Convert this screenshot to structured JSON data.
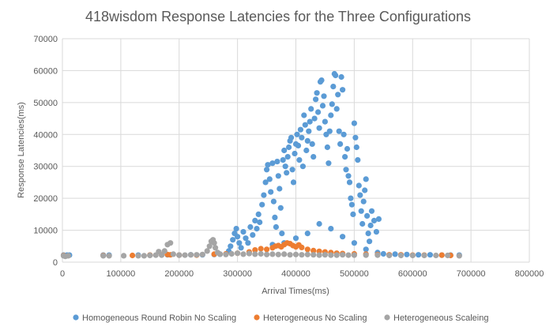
{
  "chart_data": {
    "type": "scatter",
    "title": "418wisdom Response Latencies for the Three Configurations",
    "xlabel": "Arrival Times(ms)",
    "ylabel": "Response Latencies(ms)",
    "xlim": [
      0,
      800000
    ],
    "ylim": [
      0,
      70000
    ],
    "xticks": [
      0,
      100000,
      200000,
      300000,
      400000,
      500000,
      600000,
      700000,
      800000
    ],
    "yticks": [
      0,
      10000,
      20000,
      30000,
      40000,
      50000,
      60000,
      70000
    ],
    "grid": true,
    "legend_position": "bottom",
    "series": [
      {
        "name": "Homogeneous Round Robin No Scaling",
        "color": "#5b9bd5",
        "points": [
          [
            2000,
            2200
          ],
          [
            8000,
            2200
          ],
          [
            12000,
            2200
          ],
          [
            70000,
            2200
          ],
          [
            80000,
            2200
          ],
          [
            130000,
            2200
          ],
          [
            150000,
            2200
          ],
          [
            180000,
            2300
          ],
          [
            200000,
            2200
          ],
          [
            220000,
            2300
          ],
          [
            240000,
            2300
          ],
          [
            260000,
            2400
          ],
          [
            270000,
            2500
          ],
          [
            285000,
            3500
          ],
          [
            288000,
            5000
          ],
          [
            292000,
            7000
          ],
          [
            295000,
            9000
          ],
          [
            298000,
            10500
          ],
          [
            300000,
            8000
          ],
          [
            303000,
            6000
          ],
          [
            306000,
            4500
          ],
          [
            310000,
            9500
          ],
          [
            314000,
            7500
          ],
          [
            318000,
            6000
          ],
          [
            322000,
            11000
          ],
          [
            326000,
            8500
          ],
          [
            330000,
            13000
          ],
          [
            333000,
            10500
          ],
          [
            336000,
            15000
          ],
          [
            338000,
            12500
          ],
          [
            342000,
            18000
          ],
          [
            345000,
            21000
          ],
          [
            348000,
            25000
          ],
          [
            350000,
            29000
          ],
          [
            352000,
            30500
          ],
          [
            355000,
            26000
          ],
          [
            357000,
            22000
          ],
          [
            360000,
            31000
          ],
          [
            362000,
            19000
          ],
          [
            364000,
            14000
          ],
          [
            366000,
            11000
          ],
          [
            368000,
            31500
          ],
          [
            370000,
            27000
          ],
          [
            372000,
            23000
          ],
          [
            374000,
            17000
          ],
          [
            376000,
            9000
          ],
          [
            378000,
            32000
          ],
          [
            380000,
            35000
          ],
          [
            382000,
            30000
          ],
          [
            384000,
            28000
          ],
          [
            386000,
            33000
          ],
          [
            388000,
            36000
          ],
          [
            390000,
            38000
          ],
          [
            392000,
            39000
          ],
          [
            394000,
            29000
          ],
          [
            396000,
            25000
          ],
          [
            398000,
            34000
          ],
          [
            400000,
            37000
          ],
          [
            402000,
            40000
          ],
          [
            404000,
            36500
          ],
          [
            406000,
            32000
          ],
          [
            408000,
            41500
          ],
          [
            410000,
            39000
          ],
          [
            412000,
            30000
          ],
          [
            414000,
            46000
          ],
          [
            416000,
            43000
          ],
          [
            418000,
            35000
          ],
          [
            420000,
            38000
          ],
          [
            422000,
            41000
          ],
          [
            424000,
            44000
          ],
          [
            426000,
            48000
          ],
          [
            428000,
            37000
          ],
          [
            430000,
            33000
          ],
          [
            432000,
            45000
          ],
          [
            434000,
            51000
          ],
          [
            436000,
            53000
          ],
          [
            438000,
            47000
          ],
          [
            440000,
            42000
          ],
          [
            442000,
            56500
          ],
          [
            444000,
            57000
          ],
          [
            446000,
            49000
          ],
          [
            448000,
            52000
          ],
          [
            450000,
            44000
          ],
          [
            452000,
            40000
          ],
          [
            454000,
            36000
          ],
          [
            456000,
            31000
          ],
          [
            458000,
            41000
          ],
          [
            460000,
            46000
          ],
          [
            462000,
            49500
          ],
          [
            464000,
            55000
          ],
          [
            466000,
            59000
          ],
          [
            468000,
            58500
          ],
          [
            470000,
            48000
          ],
          [
            472000,
            52500
          ],
          [
            474000,
            41000
          ],
          [
            476000,
            37000
          ],
          [
            478000,
            58000
          ],
          [
            480000,
            54000
          ],
          [
            482000,
            40000
          ],
          [
            484000,
            33000
          ],
          [
            486000,
            29000
          ],
          [
            488000,
            35500
          ],
          [
            490000,
            27000
          ],
          [
            492000,
            25000
          ],
          [
            494000,
            20000
          ],
          [
            496000,
            18000
          ],
          [
            498000,
            15000
          ],
          [
            500000,
            43500
          ],
          [
            502000,
            39000
          ],
          [
            504000,
            36000
          ],
          [
            506000,
            32000
          ],
          [
            508000,
            24000
          ],
          [
            510000,
            21000
          ],
          [
            512000,
            16000
          ],
          [
            514000,
            12000
          ],
          [
            516000,
            19000
          ],
          [
            518000,
            22500
          ],
          [
            520000,
            26000
          ],
          [
            522000,
            14500
          ],
          [
            524000,
            9000
          ],
          [
            526000,
            6500
          ],
          [
            528000,
            11500
          ],
          [
            530000,
            16000
          ],
          [
            534000,
            13000
          ],
          [
            538000,
            9500
          ],
          [
            542000,
            13500
          ],
          [
            360000,
            5500
          ],
          [
            380000,
            6000
          ],
          [
            400000,
            7500
          ],
          [
            420000,
            9000
          ],
          [
            440000,
            12000
          ],
          [
            460000,
            10500
          ],
          [
            480000,
            8000
          ],
          [
            500000,
            6000
          ],
          [
            520000,
            4000
          ],
          [
            540000,
            3000
          ],
          [
            550000,
            2600
          ],
          [
            570000,
            2500
          ],
          [
            590000,
            2400
          ],
          [
            610000,
            2300
          ],
          [
            630000,
            2300
          ],
          [
            650000,
            2200
          ],
          [
            665000,
            2200
          ],
          [
            680000,
            2200
          ]
        ]
      },
      {
        "name": "Heterogeneous No Scaling",
        "color": "#ed7d31",
        "points": [
          [
            2000,
            2100
          ],
          [
            70000,
            2100
          ],
          [
            120000,
            2100
          ],
          [
            150000,
            2200
          ],
          [
            170000,
            2300
          ],
          [
            180000,
            2400
          ],
          [
            185000,
            2300
          ],
          [
            200000,
            2200
          ],
          [
            230000,
            2200
          ],
          [
            260000,
            2500
          ],
          [
            280000,
            2600
          ],
          [
            300000,
            2800
          ],
          [
            320000,
            3200
          ],
          [
            330000,
            3800
          ],
          [
            340000,
            4200
          ],
          [
            350000,
            4000
          ],
          [
            360000,
            4500
          ],
          [
            365000,
            5000
          ],
          [
            370000,
            5200
          ],
          [
            375000,
            4800
          ],
          [
            380000,
            5500
          ],
          [
            385000,
            6000
          ],
          [
            390000,
            5800
          ],
          [
            395000,
            5200
          ],
          [
            400000,
            4800
          ],
          [
            405000,
            5400
          ],
          [
            410000,
            4600
          ],
          [
            420000,
            4000
          ],
          [
            430000,
            3600
          ],
          [
            440000,
            3400
          ],
          [
            450000,
            3200
          ],
          [
            460000,
            3000
          ],
          [
            470000,
            2800
          ],
          [
            480000,
            2700
          ],
          [
            500000,
            2600
          ],
          [
            520000,
            2500
          ],
          [
            540000,
            2400
          ],
          [
            560000,
            2300
          ],
          [
            580000,
            2300
          ],
          [
            600000,
            2200
          ],
          [
            620000,
            2200
          ],
          [
            650000,
            2200
          ],
          [
            665000,
            2100
          ]
        ]
      },
      {
        "name": "Heterogeneous Scaleing",
        "color": "#a5a5a5",
        "points": [
          [
            2000,
            2000
          ],
          [
            5000,
            1800
          ],
          [
            10000,
            2000
          ],
          [
            70000,
            2000
          ],
          [
            80000,
            2000
          ],
          [
            105000,
            2000
          ],
          [
            130000,
            2000
          ],
          [
            140000,
            2000
          ],
          [
            150000,
            2100
          ],
          [
            160000,
            2200
          ],
          [
            165000,
            3300
          ],
          [
            170000,
            2200
          ],
          [
            175000,
            3500
          ],
          [
            180000,
            5500
          ],
          [
            185000,
            6000
          ],
          [
            190000,
            2500
          ],
          [
            200000,
            2200
          ],
          [
            210000,
            2200
          ],
          [
            220000,
            2300
          ],
          [
            230000,
            2300
          ],
          [
            240000,
            2400
          ],
          [
            248000,
            3500
          ],
          [
            252000,
            5000
          ],
          [
            255000,
            6500
          ],
          [
            258000,
            7000
          ],
          [
            260000,
            6000
          ],
          [
            262000,
            4500
          ],
          [
            266000,
            3000
          ],
          [
            270000,
            2500
          ],
          [
            280000,
            2400
          ],
          [
            290000,
            2600
          ],
          [
            300000,
            2800
          ],
          [
            310000,
            2500
          ],
          [
            320000,
            2700
          ],
          [
            330000,
            2500
          ],
          [
            340000,
            2600
          ],
          [
            350000,
            2400
          ],
          [
            360000,
            2500
          ],
          [
            370000,
            2400
          ],
          [
            380000,
            2500
          ],
          [
            390000,
            2300
          ],
          [
            400000,
            2400
          ],
          [
            410000,
            2300
          ],
          [
            420000,
            2400
          ],
          [
            430000,
            2300
          ],
          [
            440000,
            2200
          ],
          [
            450000,
            2300
          ],
          [
            460000,
            2200
          ],
          [
            470000,
            2200
          ],
          [
            480000,
            2300
          ],
          [
            490000,
            2200
          ],
          [
            500000,
            2200
          ],
          [
            520000,
            2200
          ],
          [
            540000,
            2200
          ],
          [
            560000,
            2100
          ],
          [
            580000,
            2100
          ],
          [
            600000,
            2100
          ],
          [
            620000,
            2100
          ],
          [
            640000,
            2100
          ],
          [
            660000,
            2100
          ],
          [
            680000,
            2000
          ]
        ]
      }
    ]
  }
}
